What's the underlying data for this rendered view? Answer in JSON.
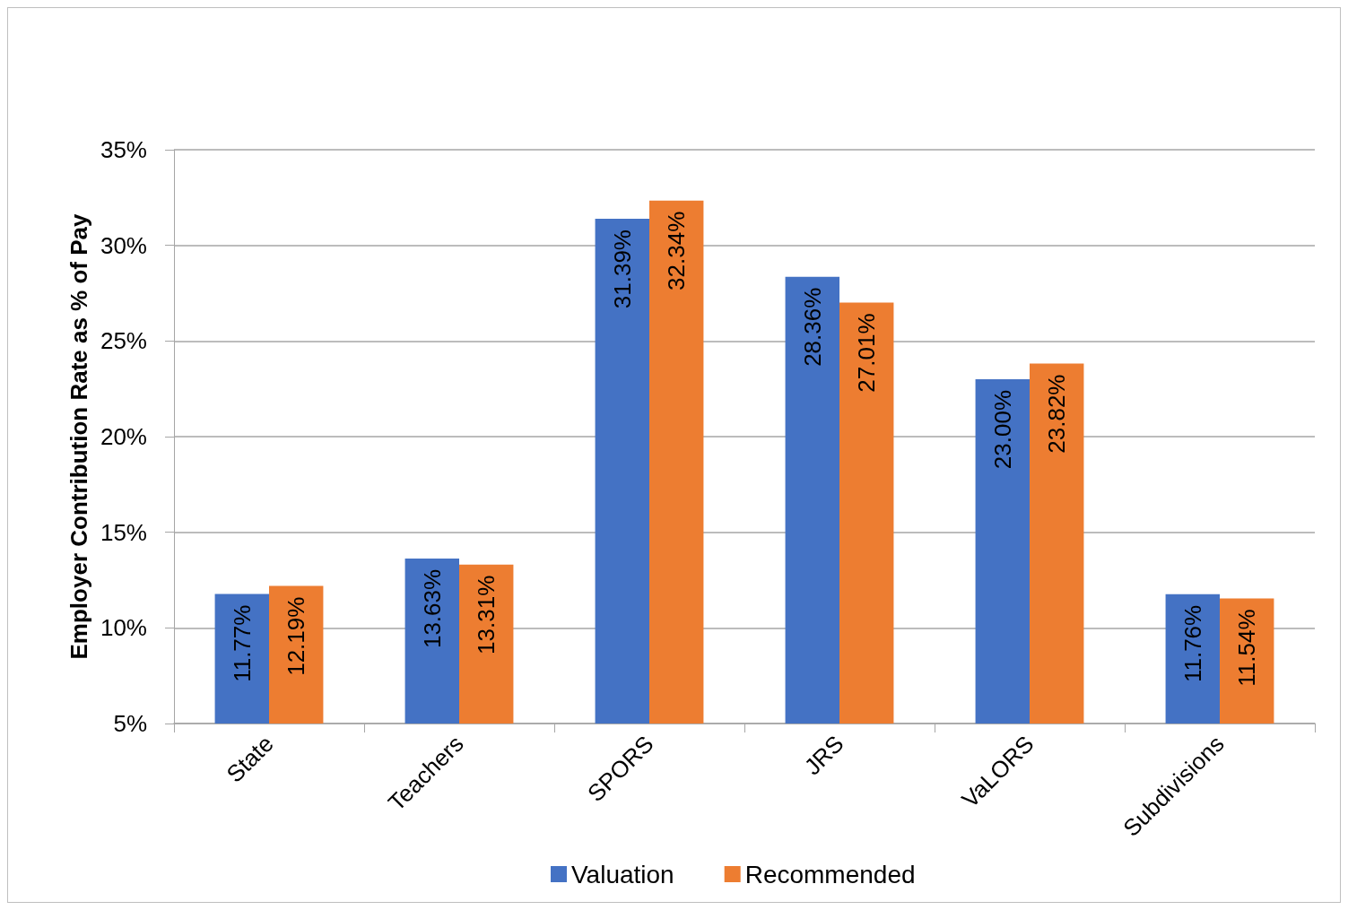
{
  "chart_data": {
    "type": "bar",
    "ylabel": "Employer Contribution Rate as % of Pay",
    "categories": [
      "State",
      "Teachers",
      "SPORS",
      "JRS",
      "VaLORS",
      "Subdivisions"
    ],
    "series": [
      {
        "name": "Valuation",
        "color": "#4472c4",
        "values": [
          11.77,
          13.63,
          31.39,
          28.36,
          23.0,
          11.76
        ],
        "value_labels": [
          "11.77%",
          "13.63%",
          "31.39%",
          "28.36%",
          "23.00%",
          "11.76%"
        ]
      },
      {
        "name": "Recommended",
        "color": "#ed7d31",
        "values": [
          12.19,
          13.31,
          32.34,
          27.01,
          23.82,
          11.54
        ],
        "value_labels": [
          "12.19%",
          "13.31%",
          "32.34%",
          "27.01%",
          "23.82%",
          "11.54%"
        ]
      }
    ],
    "ylim": [
      5,
      35
    ],
    "yticks": [
      {
        "value": 5,
        "label": "5%"
      },
      {
        "value": 10,
        "label": "10%"
      },
      {
        "value": 15,
        "label": "15%"
      },
      {
        "value": 20,
        "label": "20%"
      },
      {
        "value": 25,
        "label": "25%"
      },
      {
        "value": 30,
        "label": "30%"
      },
      {
        "value": 35,
        "label": "35%"
      }
    ],
    "grid": "y",
    "legend": "bottom"
  }
}
